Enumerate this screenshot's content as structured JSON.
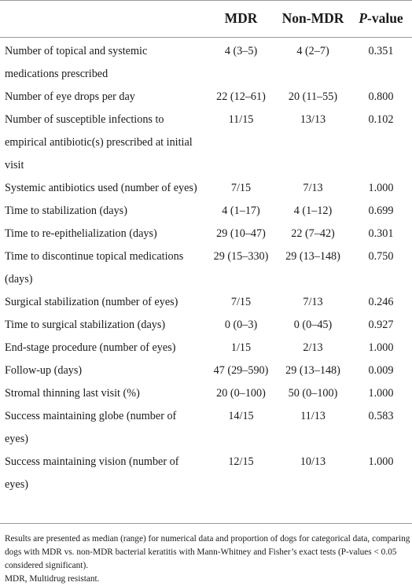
{
  "table": {
    "columns": {
      "label": "",
      "mdr": "MDR",
      "non_mdr": "Non-MDR",
      "p_value_italic": "P",
      "p_value_rest": "-value"
    },
    "rows": [
      {
        "label": "Number of topical and systemic medications prescribed",
        "mdr": "4 (3–5)",
        "non_mdr": "4 (2–7)",
        "p": "0.351"
      },
      {
        "label": "Number of eye drops per day",
        "mdr": "22 (12–61)",
        "non_mdr": "20 (11–55)",
        "p": "0.800"
      },
      {
        "label": "Number of susceptible infections to empirical antibiotic(s) prescribed at initial visit",
        "mdr": "11/15",
        "non_mdr": "13/13",
        "p": "0.102"
      },
      {
        "label": "Systemic antibiotics used (number of eyes)",
        "mdr": "7/15",
        "non_mdr": "7/13",
        "p": "1.000"
      },
      {
        "label": "Time to stabilization (days)",
        "mdr": "4 (1–17)",
        "non_mdr": "4 (1–12)",
        "p": "0.699"
      },
      {
        "label": "Time to re-epithelialization (days)",
        "mdr": "29 (10–47)",
        "non_mdr": "22 (7–42)",
        "p": "0.301"
      },
      {
        "label": "Time to discontinue topical medications (days)",
        "mdr": "29 (15–330)",
        "non_mdr": "29 (13–148)",
        "p": "0.750"
      },
      {
        "label": "Surgical stabilization (number of eyes)",
        "mdr": "7/15",
        "non_mdr": "7/13",
        "p": "0.246"
      },
      {
        "label": "Time to surgical stabilization (days)",
        "mdr": "0 (0–3)",
        "non_mdr": "0 (0–45)",
        "p": "0.927"
      },
      {
        "label": "End-stage procedure (number of eyes)",
        "mdr": "1/15",
        "non_mdr": "2/13",
        "p": "1.000"
      },
      {
        "label": "Follow-up (days)",
        "mdr": "47 (29–590)",
        "non_mdr": "29 (13–148)",
        "p": "0.009"
      },
      {
        "label": "Stromal thinning last visit (%)",
        "mdr": "20 (0–100)",
        "non_mdr": "50 (0–100)",
        "p": "1.000"
      },
      {
        "label": "Success maintaining globe (number of eyes)",
        "mdr": "14/15",
        "non_mdr": "11/13",
        "p": "0.583"
      },
      {
        "label": "Success maintaining vision (number of eyes)",
        "mdr": "12/15",
        "non_mdr": "10/13",
        "p": "1.000"
      }
    ]
  },
  "footnote": {
    "line1": "Results are presented as median (range) for numerical data and proportion of dogs for categorical data, comparing dogs with MDR vs. non-MDR bacterial keratitis with Mann-Whitney and Fisher’s exact tests (P-values < 0.05 considered significant).",
    "line2": "MDR, Multidrug resistant."
  }
}
